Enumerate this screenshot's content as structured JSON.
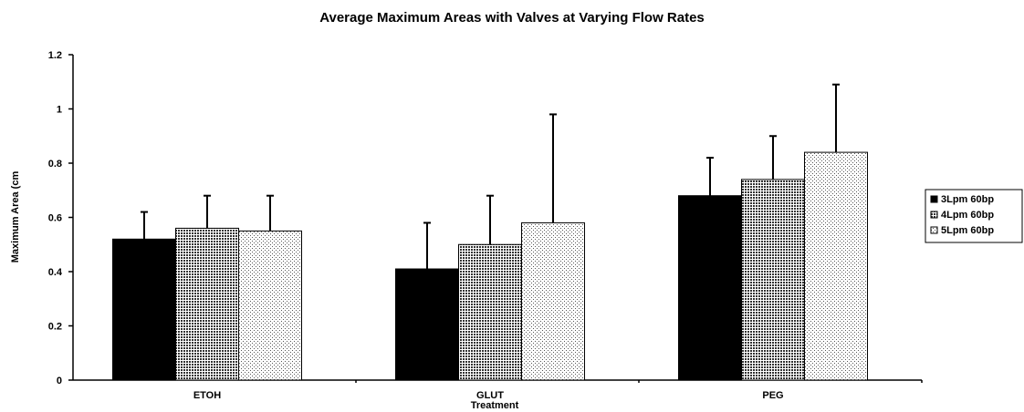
{
  "chart_data": {
    "type": "bar",
    "title": "Average Maximum Areas with Valves at Varying Flow Rates",
    "xlabel": "Treatment",
    "ylabel": "Maximum Area (cm",
    "categories": [
      "ETOH",
      "GLUT",
      "PEG"
    ],
    "ylim": [
      0,
      1.2
    ],
    "yticks": [
      "0",
      "0.2",
      "0.4",
      "0.6",
      "0.8",
      "1",
      "1.2"
    ],
    "series": [
      {
        "name": "3Lpm 60bp",
        "values": [
          0.52,
          0.41,
          0.68
        ],
        "errors": [
          0.1,
          0.17,
          0.14
        ]
      },
      {
        "name": "4Lpm 60bp",
        "values": [
          0.56,
          0.5,
          0.74
        ],
        "errors": [
          0.12,
          0.18,
          0.16
        ]
      },
      {
        "name": "5Lpm 60bp",
        "values": [
          0.55,
          0.58,
          0.84
        ],
        "errors": [
          0.13,
          0.4,
          0.25
        ]
      }
    ],
    "legend_position": "right",
    "grid": false,
    "error_bars": "upper"
  }
}
